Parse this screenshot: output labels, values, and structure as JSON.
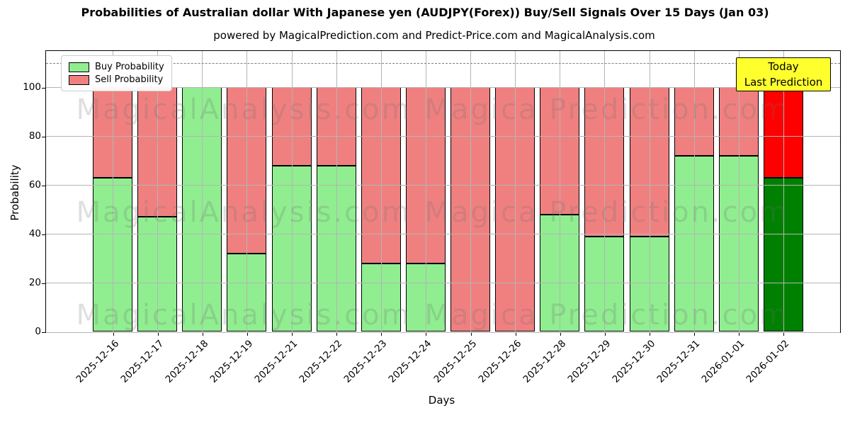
{
  "title": "Probabilities of Australian dollar With Japanese yen (AUDJPY(Forex)) Buy/Sell Signals Over 15 Days (Jan 03)",
  "subtitle": "powered by MagicalPrediction.com and Predict-Price.com and MagicalAnalysis.com",
  "legend": {
    "items": [
      {
        "label": "Buy Probability",
        "color": "#90EE90"
      },
      {
        "label": "Sell Probability",
        "color": "#F08080"
      }
    ]
  },
  "annotation": {
    "line1": "Today",
    "line2": "Last Prediction",
    "bg_color": "#FFFF00"
  },
  "watermark": {
    "left_text": "MagicalAnalysis.com",
    "right_text": "Magica Prediction.com"
  },
  "chart_data": {
    "type": "bar",
    "stacked": true,
    "title": "Probabilities of Australian dollar With Japanese yen (AUDJPY(Forex)) Buy/Sell Signals Over 15 Days (Jan 03)",
    "xlabel": "Days",
    "ylabel": "Probability",
    "categories": [
      "2025-12-16",
      "2025-12-17",
      "2025-12-18",
      "2025-12-19",
      "2025-12-21",
      "2025-12-22",
      "2025-12-23",
      "2025-12-24",
      "2025-12-25",
      "2025-12-26",
      "2025-12-28",
      "2025-12-29",
      "2025-12-30",
      "2025-12-31",
      "2026-01-01",
      "2026-01-02"
    ],
    "series": [
      {
        "name": "Buy Probability",
        "color": "#90EE90",
        "values": [
          63,
          47,
          100,
          32,
          68,
          68,
          28,
          28,
          0,
          0,
          48,
          39,
          39,
          72,
          72,
          63
        ]
      },
      {
        "name": "Sell Probability",
        "color": "#F08080",
        "values": [
          37,
          53,
          0,
          68,
          32,
          32,
          72,
          72,
          100,
          100,
          52,
          61,
          61,
          28,
          28,
          37
        ]
      }
    ],
    "today_index": 15,
    "today_colors": {
      "buy": "#008000",
      "sell": "#FF0000"
    },
    "ylim": [
      0,
      115
    ],
    "yticks": [
      0,
      20,
      40,
      60,
      80,
      100
    ],
    "dashed_line_y": 110,
    "grid": true,
    "legend_position": "upper left",
    "bar_edge_color": "#000000"
  }
}
